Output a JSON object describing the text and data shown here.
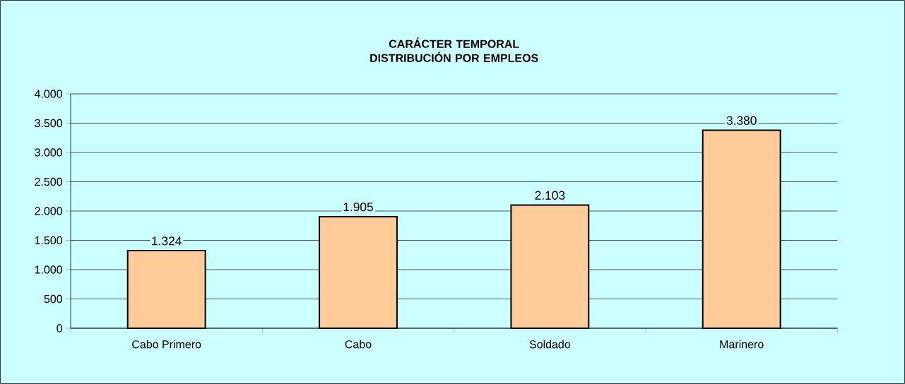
{
  "chart_data": {
    "type": "bar",
    "title": "CARÁCTER TEMPORAL\nDISTRIBUCIÓN POR EMPLEOS",
    "categories": [
      "Cabo Primero",
      "Cabo",
      "Soldado",
      "Marinero"
    ],
    "values": [
      1324,
      1905,
      2103,
      3380
    ],
    "value_labels": [
      "1.324",
      "1.905",
      "2.103",
      "3.380"
    ],
    "color": "#ffcc99",
    "ylim": [
      0,
      4000
    ],
    "yticks": [
      {
        "value": 0,
        "label": "0"
      },
      {
        "value": 500,
        "label": "500"
      },
      {
        "value": 1000,
        "label": "1.000"
      },
      {
        "value": 1500,
        "label": "1.500"
      },
      {
        "value": 2000,
        "label": "2.000"
      },
      {
        "value": 2500,
        "label": "2.500"
      },
      {
        "value": 3000,
        "label": "3.000"
      },
      {
        "value": 3500,
        "label": "3.500"
      },
      {
        "value": 4000,
        "label": "4.000"
      }
    ],
    "grid": "y"
  }
}
